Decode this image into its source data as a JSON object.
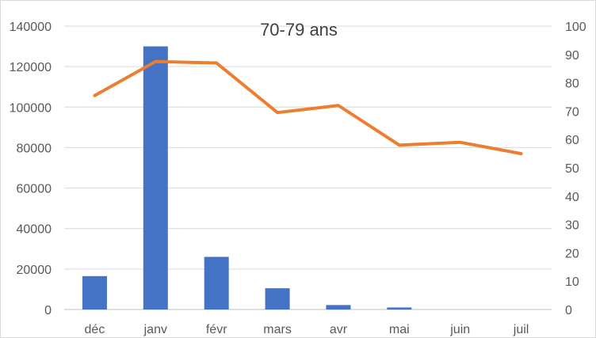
{
  "chart_data": {
    "type": "bar+line",
    "title": "70-79 ans",
    "categories": [
      "déc",
      "janv",
      "févr",
      "mars",
      "avr",
      "mai",
      "juin",
      "juil"
    ],
    "series": [
      {
        "type": "bar",
        "axis": "left",
        "color": "#4472c4",
        "values": [
          16500,
          130000,
          26000,
          10500,
          2200,
          1000,
          0,
          0
        ]
      },
      {
        "type": "line",
        "axis": "right",
        "color": "#ed7d31",
        "values": [
          75.5,
          87.5,
          87,
          69.5,
          72,
          58,
          59,
          55
        ]
      }
    ],
    "y_left": {
      "min": 0,
      "max": 140000,
      "ticks": [
        "0",
        "20000",
        "40000",
        "60000",
        "80000",
        "100000",
        "120000",
        "140000"
      ]
    },
    "y_right": {
      "min": 0,
      "max": 100,
      "ticks": [
        "0",
        "10",
        "20",
        "30",
        "40",
        "50",
        "60",
        "70",
        "80",
        "90",
        "100"
      ]
    },
    "grid": true,
    "legend": "none"
  }
}
